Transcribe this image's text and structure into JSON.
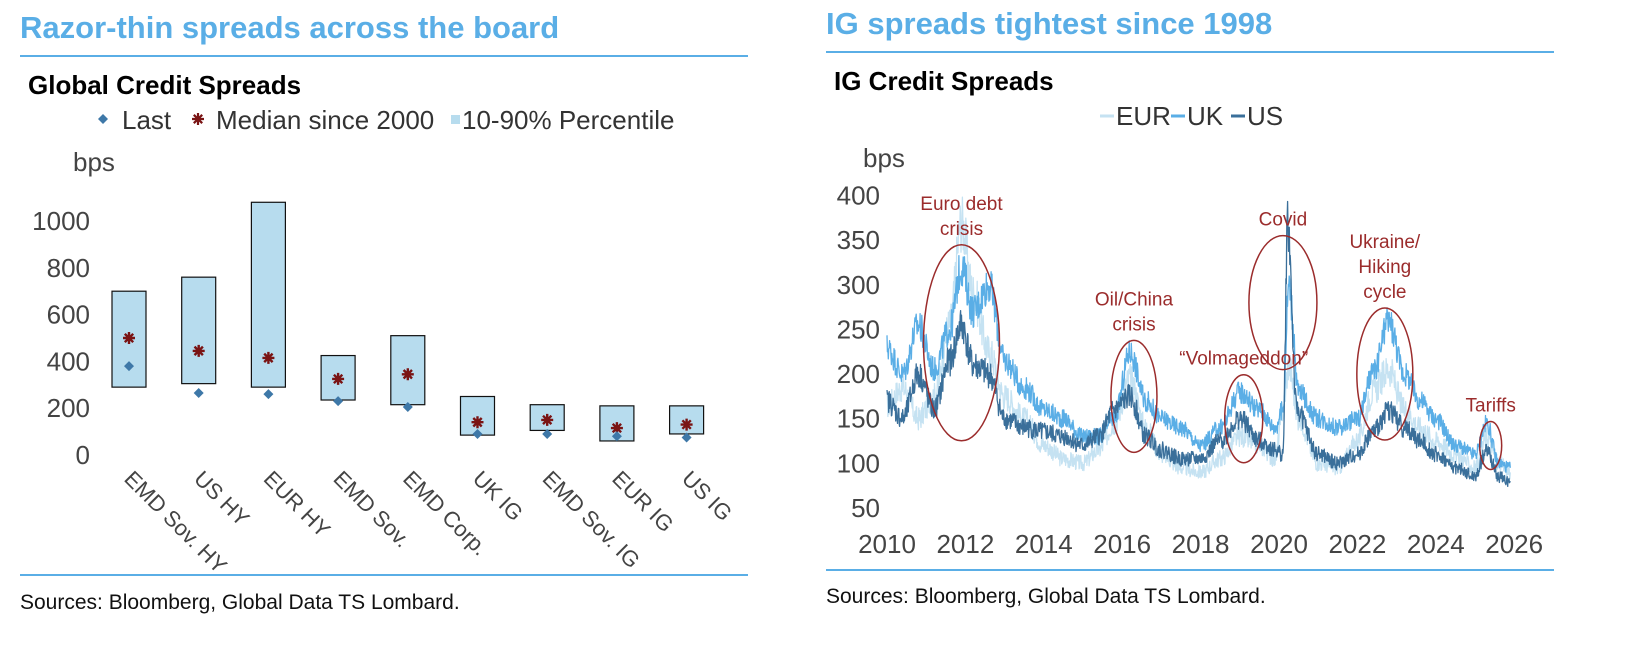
{
  "left": {
    "headline": "Razor-thin spreads across the board",
    "source": "Sources: Bloomberg, Global Data TS Lombard."
  },
  "right": {
    "headline": "IG spreads tightest since 1998",
    "source": "Sources: Bloomberg, Global Data TS Lombard."
  },
  "colors": {
    "accent": "#5aaee6",
    "box_fill": "#b7dcee",
    "marker_last": "#3e78a8",
    "marker_median": "#7a1414",
    "eur": "#c5e2f2",
    "uk": "#5aaee6",
    "us": "#3a6f9a",
    "annotation": "#9b2c2c"
  },
  "chart_data": [
    {
      "type": "bar",
      "title": "Global Credit Spreads",
      "ylabel": "bps",
      "ylim": [
        0,
        1000
      ],
      "yticks": [
        0,
        200,
        400,
        600,
        800,
        1000
      ],
      "legend": {
        "position": "top",
        "entries": [
          "Last",
          "Median since 2000",
          "10-90% Percentile"
        ]
      },
      "categories": [
        "EMD Sov. HY",
        "US HY",
        "EUR HY",
        "EMD Sov.",
        "EMD Corp.",
        "UK IG",
        "EMD Sov. IG",
        "EUR IG",
        "US IG"
      ],
      "series": [
        {
          "name": "10-90% Percentile",
          "low": [
            290,
            305,
            290,
            235,
            215,
            85,
            105,
            60,
            90
          ],
          "high": [
            700,
            760,
            1080,
            425,
            510,
            250,
            215,
            210,
            210
          ]
        },
        {
          "name": "Median since 2000",
          "values": [
            500,
            445,
            415,
            325,
            345,
            140,
            150,
            115,
            130
          ]
        },
        {
          "name": "Last",
          "values": [
            380,
            265,
            260,
            230,
            205,
            90,
            90,
            80,
            75
          ]
        }
      ]
    },
    {
      "type": "line",
      "title": "IG Credit Spreads",
      "ylabel": "bps",
      "ylim": [
        50,
        400
      ],
      "yticks": [
        50,
        100,
        150,
        200,
        250,
        300,
        350,
        400
      ],
      "xlim": [
        2010,
        2026
      ],
      "xticks": [
        2010,
        2012,
        2014,
        2016,
        2018,
        2020,
        2022,
        2024,
        2026
      ],
      "legend": {
        "position": "top",
        "entries": [
          "EUR",
          "UK",
          "US"
        ]
      },
      "annotations": [
        {
          "text": [
            "Euro debt",
            "crisis"
          ],
          "x": 2011.9,
          "y": 235
        },
        {
          "text": [
            "Oil/China",
            "crisis"
          ],
          "x": 2016.3,
          "y": 175
        },
        {
          "text": [
            "“Volmageddon”"
          ],
          "x": 2019.1,
          "y": 150
        },
        {
          "text": [
            "Covid"
          ],
          "x": 2020.1,
          "y": 280
        },
        {
          "text": [
            "Ukraine/",
            "Hiking",
            "cycle"
          ],
          "x": 2022.7,
          "y": 200
        },
        {
          "text": [
            "Tariffs"
          ],
          "x": 2025.4,
          "y": 120
        }
      ],
      "series": [
        {
          "name": "EUR",
          "x": [
            2010.0,
            2010.4,
            2010.8,
            2011.2,
            2011.6,
            2011.9,
            2012.2,
            2012.6,
            2013.0,
            2013.5,
            2014.0,
            2014.5,
            2015.0,
            2015.4,
            2015.8,
            2016.2,
            2016.6,
            2017.0,
            2017.5,
            2018.0,
            2018.5,
            2019.0,
            2019.5,
            2019.9,
            2020.1,
            2020.25,
            2020.5,
            2021.0,
            2021.5,
            2022.0,
            2022.4,
            2022.8,
            2023.2,
            2023.6,
            2024.0,
            2024.5,
            2025.0,
            2025.3,
            2025.6,
            2025.9
          ],
          "y": [
            165,
            185,
            150,
            175,
            255,
            370,
            290,
            225,
            175,
            150,
            120,
            105,
            100,
            115,
            145,
            195,
            140,
            110,
            95,
            90,
            105,
            130,
            120,
            105,
            160,
            210,
            150,
            100,
            95,
            125,
            180,
            205,
            160,
            140,
            125,
            110,
            95,
            130,
            100,
            90
          ]
        },
        {
          "name": "UK",
          "x": [
            2010.0,
            2010.4,
            2010.8,
            2011.2,
            2011.6,
            2011.9,
            2012.2,
            2012.6,
            2013.0,
            2013.5,
            2014.0,
            2014.5,
            2015.0,
            2015.4,
            2015.8,
            2016.2,
            2016.6,
            2017.0,
            2017.5,
            2018.0,
            2018.5,
            2019.0,
            2019.5,
            2019.9,
            2020.1,
            2020.25,
            2020.5,
            2021.0,
            2021.5,
            2022.0,
            2022.4,
            2022.8,
            2023.2,
            2023.6,
            2024.0,
            2024.5,
            2025.0,
            2025.3,
            2025.6,
            2025.9
          ],
          "y": [
            230,
            200,
            255,
            205,
            250,
            320,
            270,
            300,
            215,
            185,
            160,
            150,
            130,
            130,
            150,
            225,
            170,
            150,
            140,
            120,
            140,
            180,
            160,
            140,
            160,
            300,
            180,
            150,
            140,
            150,
            200,
            260,
            200,
            170,
            150,
            120,
            110,
            145,
            100,
            95
          ]
        },
        {
          "name": "US",
          "x": [
            2010.0,
            2010.4,
            2010.8,
            2011.2,
            2011.6,
            2011.9,
            2012.2,
            2012.6,
            2013.0,
            2013.5,
            2014.0,
            2014.5,
            2015.0,
            2015.4,
            2015.8,
            2016.2,
            2016.6,
            2017.0,
            2017.5,
            2018.0,
            2018.5,
            2019.0,
            2019.5,
            2019.9,
            2020.1,
            2020.22,
            2020.45,
            2021.0,
            2021.5,
            2022.0,
            2022.4,
            2022.8,
            2023.2,
            2023.6,
            2024.0,
            2024.5,
            2025.0,
            2025.3,
            2025.6,
            2025.9
          ],
          "y": [
            170,
            150,
            200,
            160,
            215,
            255,
            210,
            200,
            150,
            140,
            135,
            130,
            120,
            130,
            160,
            175,
            130,
            115,
            105,
            105,
            125,
            150,
            125,
            115,
            110,
            370,
            160,
            110,
            100,
            110,
            135,
            160,
            140,
            125,
            110,
            95,
            85,
            115,
            85,
            80
          ]
        }
      ]
    }
  ]
}
